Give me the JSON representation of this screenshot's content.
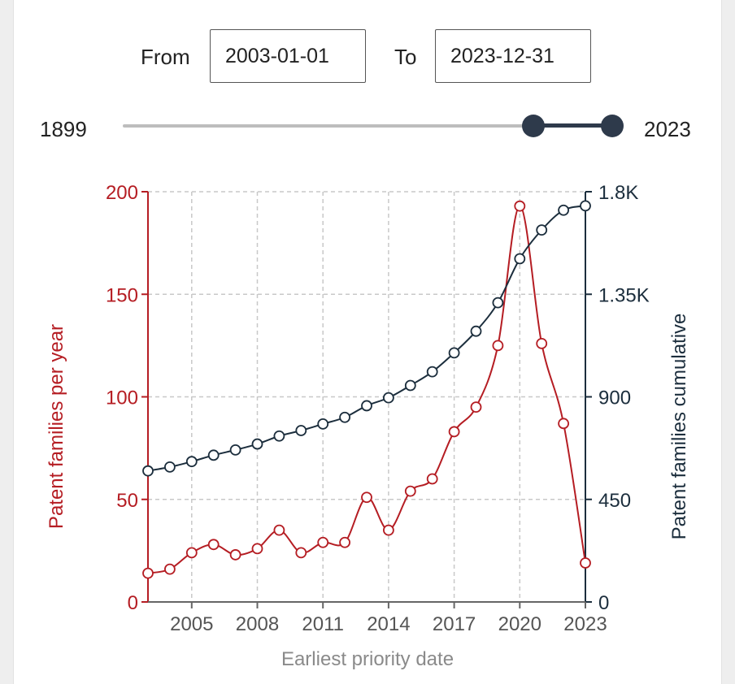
{
  "filters": {
    "from_label": "From",
    "from_value": "2003-01-01",
    "to_label": "To",
    "to_value": "2023-12-31"
  },
  "slider": {
    "min_label": "1899",
    "max_label": "2023",
    "min_year": 1899,
    "max_year": 2023,
    "low_year": 2003,
    "high_year": 2023
  },
  "chart_data": {
    "type": "line",
    "title": "",
    "xlabel": "Earliest priority date",
    "ylabel": "Patent families per year",
    "y2label": "Patent families cumulative",
    "xlim": [
      2003,
      2023
    ],
    "ylim": [
      0,
      200
    ],
    "y2lim": [
      0,
      1800
    ],
    "x_ticks": [
      2005,
      2008,
      2011,
      2014,
      2017,
      2020,
      2023
    ],
    "x_tick_labels": [
      "2005",
      "2008",
      "2011",
      "2014",
      "2017",
      "2020",
      "2023"
    ],
    "y_ticks": [
      0,
      50,
      100,
      150,
      200
    ],
    "y_tick_labels": [
      "0",
      "50",
      "100",
      "150",
      "200"
    ],
    "y2_ticks": [
      0,
      450,
      900,
      1350,
      1800
    ],
    "y2_tick_labels": [
      "0",
      "450",
      "900",
      "1.35K",
      "1.8K"
    ],
    "grid": true,
    "x": [
      2003,
      2004,
      2005,
      2006,
      2007,
      2008,
      2009,
      2010,
      2011,
      2012,
      2013,
      2014,
      2015,
      2016,
      2017,
      2018,
      2019,
      2020,
      2021,
      2022,
      2023
    ],
    "series": [
      {
        "name": "Patent families per year",
        "axis": "left",
        "color": "#b51d23",
        "values": [
          14,
          16,
          24,
          28,
          23,
          26,
          35,
          24,
          29,
          29,
          51,
          35,
          54,
          60,
          83,
          95,
          125,
          193,
          126,
          87,
          19
        ]
      },
      {
        "name": "Patent families cumulative",
        "axis": "right",
        "color": "#1c2e3d",
        "values": [
          575,
          592,
          616,
          644,
          667,
          693,
          728,
          752,
          781,
          810,
          861,
          896,
          950,
          1010,
          1093,
          1188,
          1313,
          1506,
          1632,
          1719,
          1738
        ]
      }
    ]
  }
}
